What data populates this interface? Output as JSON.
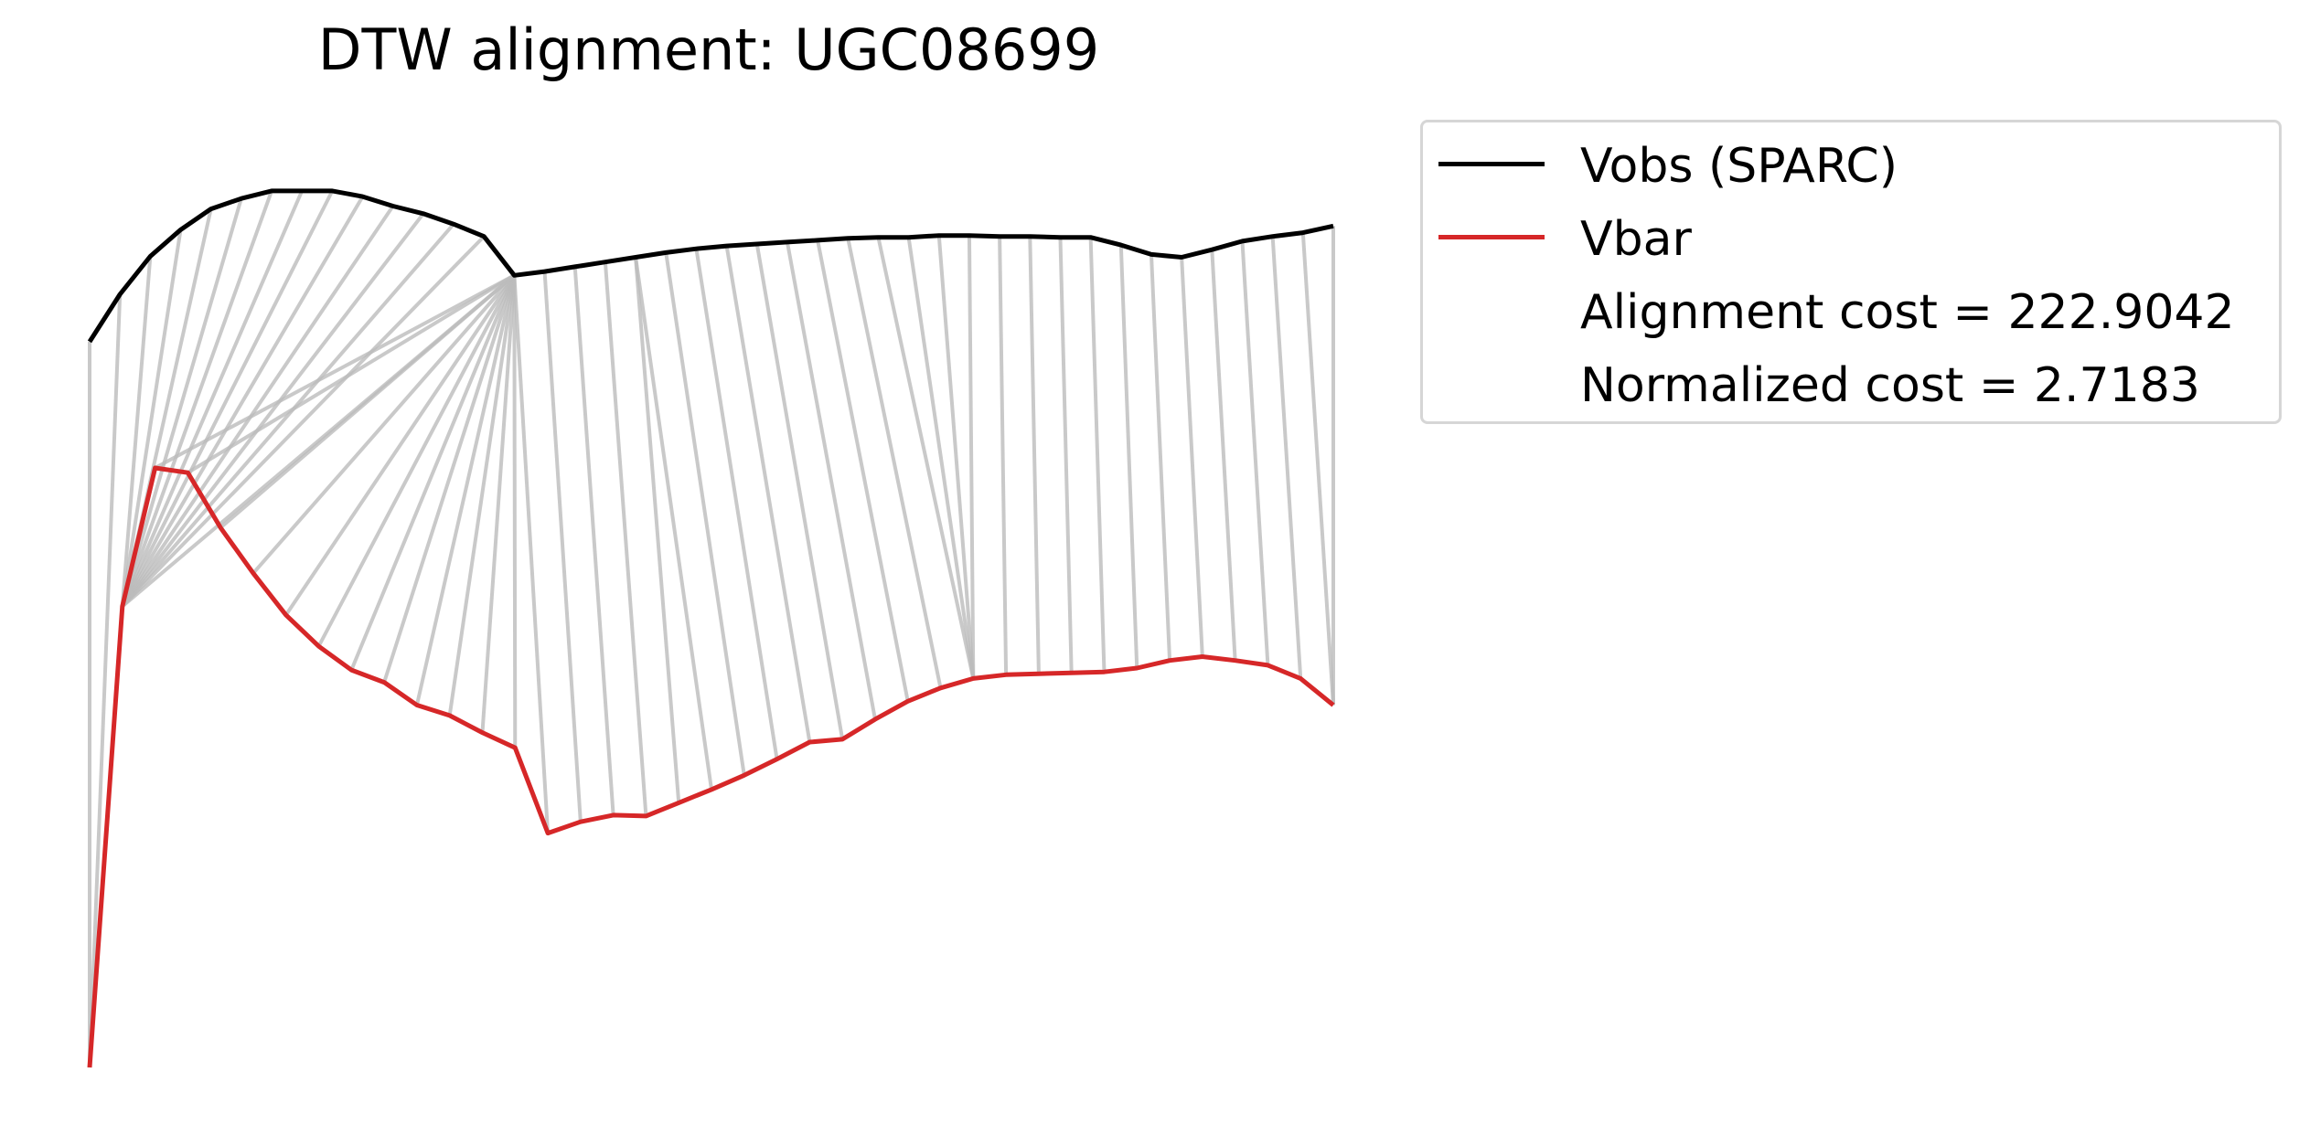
{
  "chart_data": {
    "type": "line",
    "title": "DTW alignment: UGC08699",
    "grid": false,
    "axes_visible": false,
    "legend_placement": "top-right outside",
    "series": [
      {
        "name": "Vobs (SPARC)",
        "color": "#000000",
        "values": [
          76.5,
          81.5,
          85.5,
          88.3,
          90.5,
          91.6,
          92.4,
          92.4,
          92.4,
          91.8,
          90.8,
          90.0,
          88.9,
          87.6,
          83.5,
          83.9,
          84.4,
          84.9,
          85.4,
          85.9,
          86.3,
          86.6,
          86.8,
          87.0,
          87.2,
          87.4,
          87.5,
          87.5,
          87.7,
          87.7,
          87.6,
          87.6,
          87.5,
          87.5,
          86.7,
          85.7,
          85.4,
          86.2,
          87.1,
          87.6,
          88.0,
          88.7
        ]
      },
      {
        "name": "Vbar",
        "color": "#d62728",
        "values": [
          0.0,
          48.6,
          63.2,
          62.7,
          56.9,
          52.1,
          47.7,
          44.4,
          41.9,
          40.6,
          38.2,
          37.1,
          35.3,
          33.7,
          24.7,
          25.9,
          26.6,
          26.5,
          27.9,
          29.3,
          30.8,
          32.5,
          34.3,
          34.6,
          36.7,
          38.6,
          40.0,
          41.0,
          41.4,
          41.5,
          41.6,
          41.7,
          42.1,
          42.9,
          43.3,
          42.9,
          42.4,
          41.0,
          38.2
        ],
        "legend_extra": [
          "Alignment cost = 222.9042",
          "Normalized cost = 2.7183"
        ]
      }
    ],
    "alignment_path": [
      [
        0,
        0
      ],
      [
        1,
        0
      ],
      [
        2,
        1
      ],
      [
        3,
        1
      ],
      [
        4,
        1
      ],
      [
        5,
        1
      ],
      [
        6,
        1
      ],
      [
        7,
        1
      ],
      [
        8,
        1
      ],
      [
        9,
        1
      ],
      [
        10,
        1
      ],
      [
        11,
        1
      ],
      [
        12,
        1
      ],
      [
        13,
        1
      ],
      [
        14,
        1
      ],
      [
        14,
        2
      ],
      [
        14,
        3
      ],
      [
        14,
        4
      ],
      [
        14,
        5
      ],
      [
        14,
        6
      ],
      [
        14,
        7
      ],
      [
        14,
        8
      ],
      [
        14,
        9
      ],
      [
        14,
        10
      ],
      [
        14,
        11
      ],
      [
        14,
        12
      ],
      [
        14,
        13
      ],
      [
        14,
        14
      ],
      [
        15,
        15
      ],
      [
        16,
        16
      ],
      [
        17,
        17
      ],
      [
        18,
        18
      ],
      [
        18,
        19
      ],
      [
        19,
        20
      ],
      [
        20,
        21
      ],
      [
        21,
        22
      ],
      [
        22,
        23
      ],
      [
        23,
        24
      ],
      [
        24,
        25
      ],
      [
        25,
        26
      ],
      [
        26,
        27
      ],
      [
        27,
        27
      ],
      [
        28,
        27
      ],
      [
        29,
        27
      ],
      [
        30,
        28
      ],
      [
        31,
        29
      ],
      [
        32,
        30
      ],
      [
        33,
        31
      ],
      [
        34,
        32
      ],
      [
        35,
        33
      ],
      [
        36,
        34
      ],
      [
        37,
        35
      ],
      [
        38,
        36
      ],
      [
        39,
        37
      ],
      [
        40,
        38
      ],
      [
        41,
        38
      ]
    ],
    "connector_color": "#bbbbbb",
    "y_range": [
      0,
      100
    ]
  },
  "legend": {
    "entries": [
      {
        "label": "Vobs (SPARC)",
        "color": "#000000"
      },
      {
        "label": "Vbar",
        "color": "#d62728"
      },
      {
        "label": "Alignment cost = 222.9042",
        "color": ""
      },
      {
        "label": "Normalized cost = 2.7183",
        "color": ""
      }
    ]
  }
}
